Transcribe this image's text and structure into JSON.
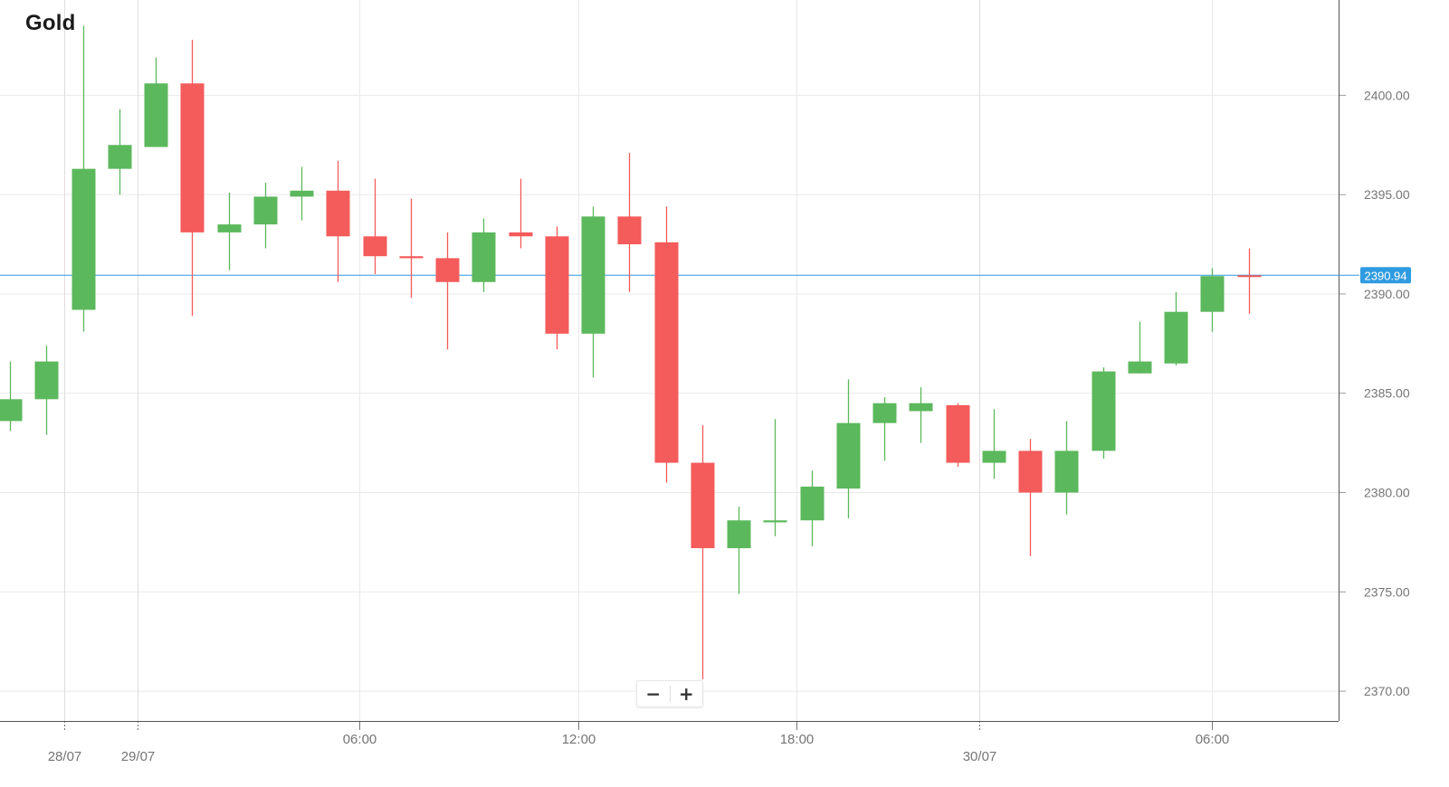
{
  "title": "Gold",
  "zoom": {
    "minus_label": "−",
    "plus_label": "+"
  },
  "colors": {
    "up": "#5cb85c",
    "down": "#f45b5b",
    "grid": "#e9e9e9",
    "current_price_line": "#2f9be0",
    "current_price_badge": "#2f9be0",
    "axis": "#555555",
    "tick_text": "#757575"
  },
  "chart_data": {
    "type": "candlestick",
    "title": "Gold",
    "xlabel": "",
    "ylabel": "",
    "ylim": [
      2368.5,
      2404.8
    ],
    "y_ticks": [
      "2400.00",
      "2395.00",
      "2390.00",
      "2385.00",
      "2380.00",
      "2375.00",
      "2370.00"
    ],
    "x_ticks": [
      {
        "label": "28/07",
        "candle_index": 1.5,
        "major": true
      },
      {
        "label": "29/07",
        "candle_index": 3.5,
        "major": true
      },
      {
        "label": "06:00",
        "candle_index": 9.6,
        "major": false
      },
      {
        "label": "12:00",
        "candle_index": 15.6,
        "major": false
      },
      {
        "label": "18:00",
        "candle_index": 21.6,
        "major": false
      },
      {
        "label": "30/07",
        "candle_index": 26.6,
        "major": true
      },
      {
        "label": "06:00",
        "candle_index": 33.0,
        "major": false
      }
    ],
    "current_price": "2390.94",
    "grid": true,
    "candles": [
      {
        "o": 2383.6,
        "h": 2386.6,
        "l": 2383.1,
        "c": 2384.7
      },
      {
        "o": 2384.7,
        "h": 2387.4,
        "l": 2382.9,
        "c": 2386.6
      },
      {
        "o": 2389.2,
        "h": 2403.5,
        "l": 2388.1,
        "c": 2396.3
      },
      {
        "o": 2396.3,
        "h": 2399.3,
        "l": 2395.0,
        "c": 2397.5
      },
      {
        "o": 2397.4,
        "h": 2401.9,
        "l": 2397.4,
        "c": 2400.6
      },
      {
        "o": 2400.6,
        "h": 2402.8,
        "l": 2388.9,
        "c": 2393.1
      },
      {
        "o": 2393.1,
        "h": 2395.1,
        "l": 2391.2,
        "c": 2393.5
      },
      {
        "o": 2393.5,
        "h": 2395.6,
        "l": 2392.3,
        "c": 2394.9
      },
      {
        "o": 2394.9,
        "h": 2396.4,
        "l": 2393.7,
        "c": 2395.2
      },
      {
        "o": 2395.2,
        "h": 2396.7,
        "l": 2390.6,
        "c": 2392.9
      },
      {
        "o": 2392.9,
        "h": 2395.8,
        "l": 2391.0,
        "c": 2391.9
      },
      {
        "o": 2391.9,
        "h": 2394.8,
        "l": 2389.8,
        "c": 2391.8
      },
      {
        "o": 2391.8,
        "h": 2393.1,
        "l": 2387.2,
        "c": 2390.6
      },
      {
        "o": 2390.6,
        "h": 2393.8,
        "l": 2390.1,
        "c": 2393.1
      },
      {
        "o": 2393.1,
        "h": 2395.8,
        "l": 2392.3,
        "c": 2392.9
      },
      {
        "o": 2392.9,
        "h": 2393.4,
        "l": 2387.2,
        "c": 2388.0
      },
      {
        "o": 2388.0,
        "h": 2394.4,
        "l": 2385.8,
        "c": 2393.9
      },
      {
        "o": 2393.9,
        "h": 2397.1,
        "l": 2390.1,
        "c": 2392.5
      },
      {
        "o": 2392.6,
        "h": 2394.4,
        "l": 2380.5,
        "c": 2381.5
      },
      {
        "o": 2381.5,
        "h": 2383.4,
        "l": 2370.6,
        "c": 2377.2
      },
      {
        "o": 2377.2,
        "h": 2379.3,
        "l": 2374.9,
        "c": 2378.6
      },
      {
        "o": 2378.5,
        "h": 2383.7,
        "l": 2377.8,
        "c": 2378.6
      },
      {
        "o": 2378.6,
        "h": 2381.1,
        "l": 2377.3,
        "c": 2380.3
      },
      {
        "o": 2380.2,
        "h": 2385.7,
        "l": 2378.7,
        "c": 2383.5
      },
      {
        "o": 2383.5,
        "h": 2384.8,
        "l": 2381.6,
        "c": 2384.5
      },
      {
        "o": 2384.1,
        "h": 2385.3,
        "l": 2382.5,
        "c": 2384.5
      },
      {
        "o": 2384.4,
        "h": 2384.5,
        "l": 2381.3,
        "c": 2381.5
      },
      {
        "o": 2381.5,
        "h": 2384.2,
        "l": 2380.7,
        "c": 2382.1
      },
      {
        "o": 2382.1,
        "h": 2382.7,
        "l": 2376.8,
        "c": 2380.0
      },
      {
        "o": 2380.0,
        "h": 2383.6,
        "l": 2378.9,
        "c": 2382.1
      },
      {
        "o": 2382.1,
        "h": 2386.3,
        "l": 2381.7,
        "c": 2386.1
      },
      {
        "o": 2386.0,
        "h": 2388.6,
        "l": 2386.0,
        "c": 2386.6
      },
      {
        "o": 2386.5,
        "h": 2390.1,
        "l": 2386.4,
        "c": 2389.1
      },
      {
        "o": 2389.1,
        "h": 2391.3,
        "l": 2388.1,
        "c": 2390.9
      },
      {
        "o": 2390.94,
        "h": 2392.3,
        "l": 2389.0,
        "c": 2390.89
      }
    ]
  }
}
